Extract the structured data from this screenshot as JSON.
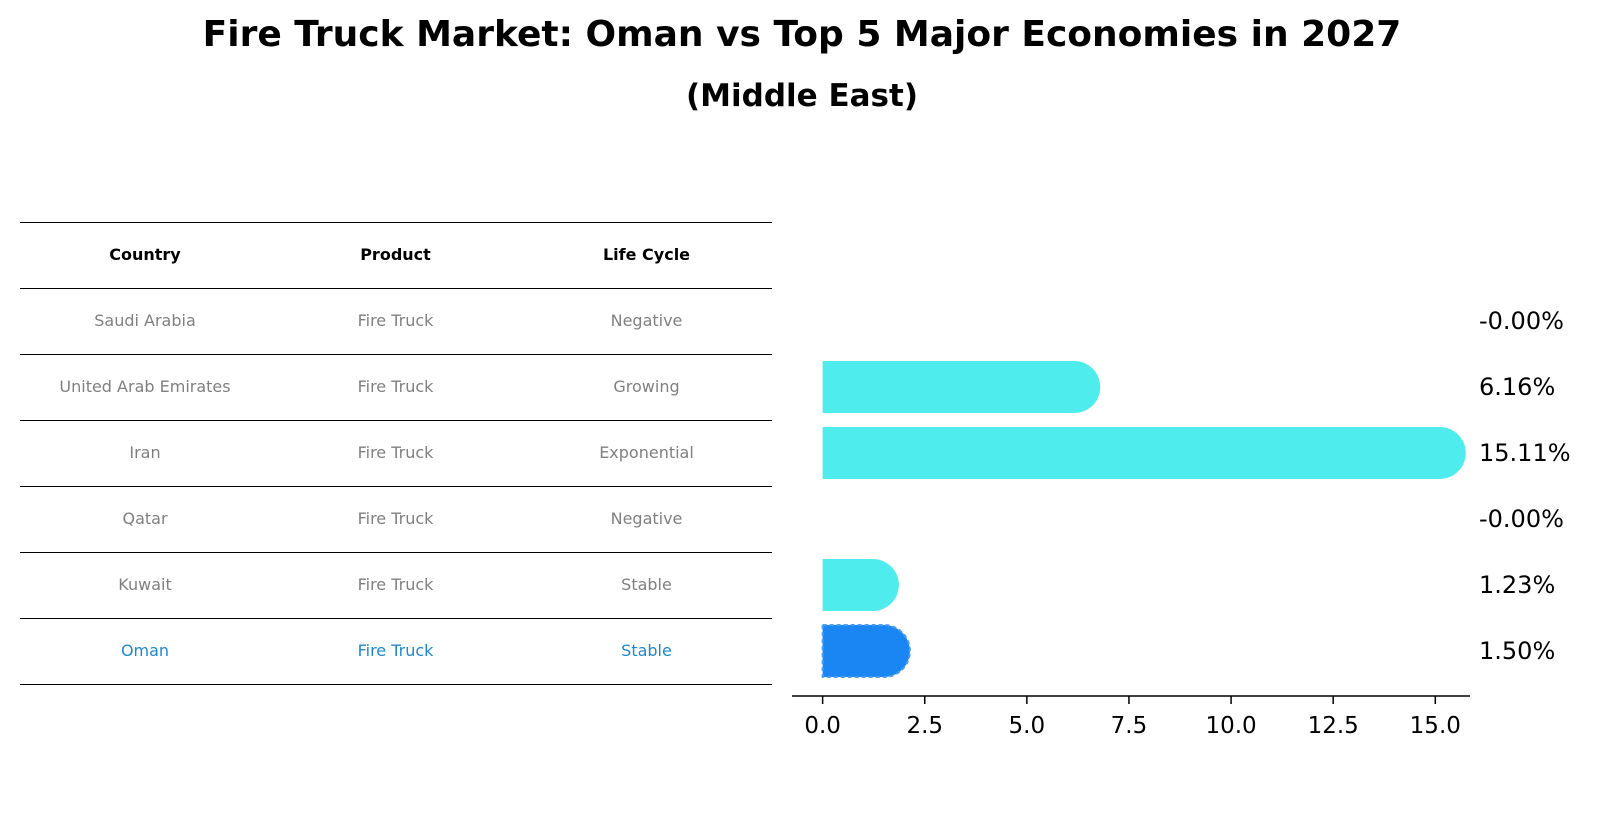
{
  "title": "Fire Truck Market: Oman vs Top 5 Major Economies in 2027",
  "subtitle": "(Middle East)",
  "table": {
    "headers": [
      "Country",
      "Product",
      "Life Cycle"
    ],
    "rows": [
      [
        "Saudi Arabia",
        "Fire Truck",
        "Negative"
      ],
      [
        "United Arab Emirates",
        "Fire Truck",
        "Growing"
      ],
      [
        "Iran",
        "Fire Truck",
        "Exponential"
      ],
      [
        "Qatar",
        "Fire Truck",
        "Negative"
      ],
      [
        "Kuwait",
        "Fire Truck",
        "Stable"
      ],
      [
        "Oman",
        "Fire Truck",
        "Stable"
      ]
    ],
    "highlight_row": 5,
    "highlight_color": "#1f87d0"
  },
  "chart_data": {
    "type": "bar",
    "orientation": "horizontal",
    "categories": [
      "Saudi Arabia",
      "United Arab Emirates",
      "Iran",
      "Qatar",
      "Kuwait",
      "Oman"
    ],
    "values": [
      -0.0,
      6.16,
      15.11,
      -0.0,
      1.23,
      1.5
    ],
    "value_labels": [
      "-0.00%",
      "6.16%",
      "15.11%",
      "-0.00%",
      "1.23%",
      "1.50%"
    ],
    "colors": [
      "#4eecec",
      "#4eecec",
      "#4eecec",
      "#4eecec",
      "#4eecec",
      "#1a86f4"
    ],
    "xlim": [
      -0.75,
      15.85
    ],
    "xticks": [
      0.0,
      2.5,
      5.0,
      7.5,
      10.0,
      12.5,
      15.0
    ],
    "xtick_labels": [
      "0.0",
      "2.5",
      "5.0",
      "7.5",
      "10.0",
      "12.5",
      "15.0"
    ],
    "grid": false
  }
}
